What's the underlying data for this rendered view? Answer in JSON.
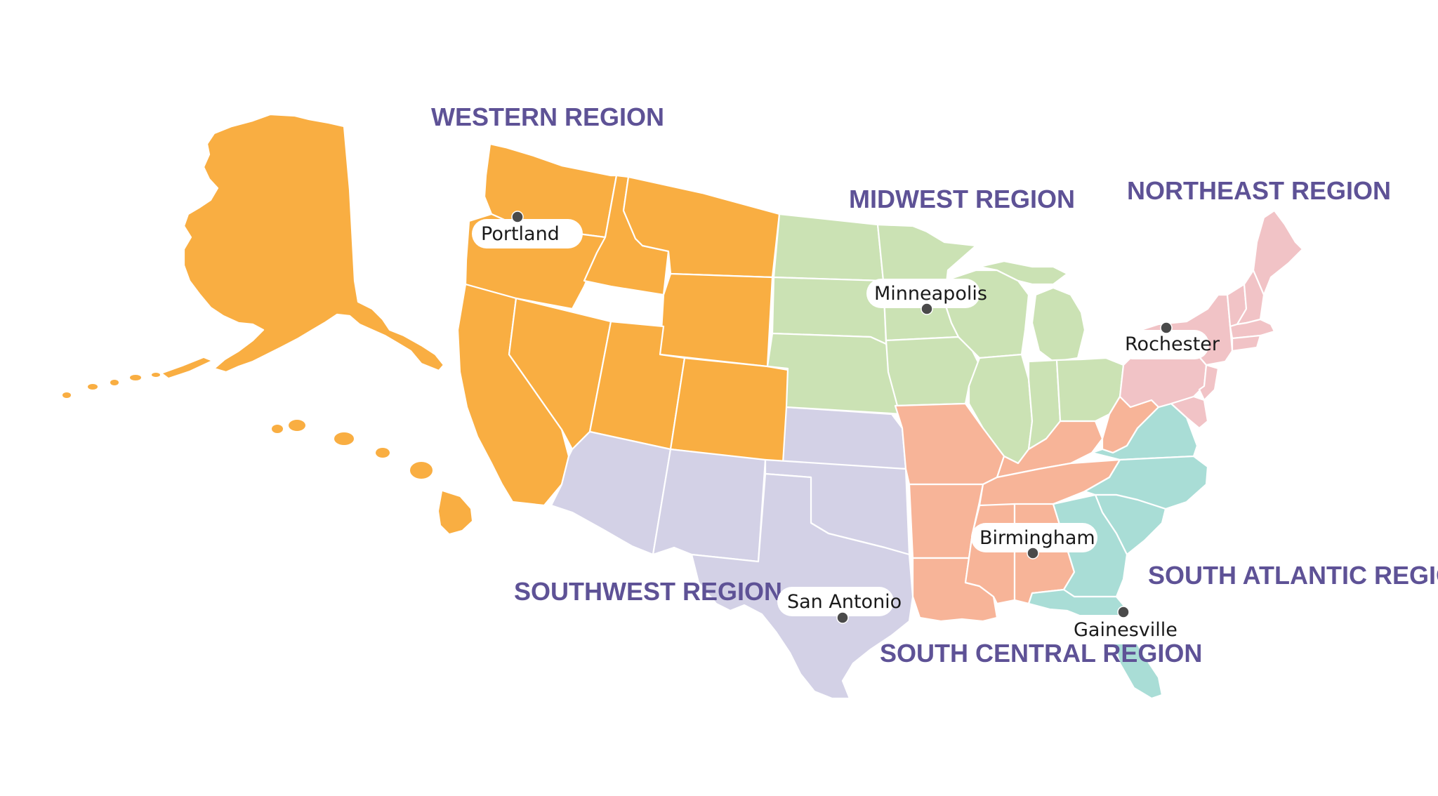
{
  "colors": {
    "western": "#f9ae42",
    "midwest": "#cbe2b4",
    "northeast": "#f1c3c6",
    "southwest": "#d3d1e6",
    "south_central": "#f7b498",
    "south_atlantic": "#a9ddd6",
    "label": "#5e5296",
    "dot": "#4a4a4a"
  },
  "regions": {
    "western": "WESTERN REGION",
    "midwest": "MIDWEST REGION",
    "northeast": "NORTHEAST REGION",
    "southwest": "SOUTHWEST REGION",
    "south_central": "SOUTH CENTRAL REGION",
    "south_atlantic": "SOUTH ATLANTIC REGION"
  },
  "cities": {
    "portland": "Portland",
    "minneapolis": "Minneapolis",
    "rochester": "Rochester",
    "birmingham": "Birmingham",
    "san_antonio": "San Antonio",
    "gainesville": "Gainesville"
  }
}
